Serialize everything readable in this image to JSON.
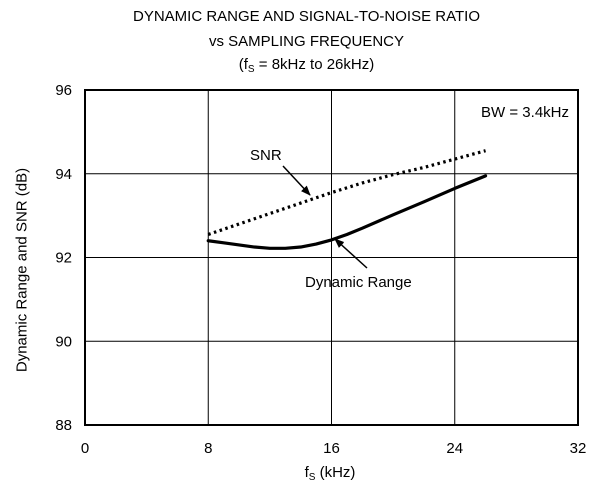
{
  "chart_data": {
    "type": "line",
    "title": "DYNAMIC RANGE AND SIGNAL-TO-NOISE RATIO",
    "subtitle": "vs SAMPLING FREQUENCY",
    "subtitle2": {
      "pre": "(f",
      "sub": "S",
      "post": " = 8kHz to 26kHz)"
    },
    "xlabel": {
      "pre": "f",
      "sub": "S",
      "post": " (kHz)"
    },
    "ylabel": "Dynamic Range and SNR (dB)",
    "xlim": [
      0,
      32
    ],
    "ylim": [
      88,
      96
    ],
    "xticks": [
      0,
      8,
      16,
      24,
      32
    ],
    "yticks": [
      88,
      90,
      92,
      94,
      96
    ],
    "grid": true,
    "series": [
      {
        "name": "SNR",
        "style": "dotted",
        "x": [
          8,
          10,
          12,
          14,
          16,
          18,
          20,
          22,
          24,
          26
        ],
        "y": [
          92.55,
          92.8,
          93.05,
          93.3,
          93.55,
          93.78,
          93.98,
          94.15,
          94.35,
          94.55
        ]
      },
      {
        "name": "Dynamic Range",
        "style": "solid",
        "x": [
          8,
          9,
          10,
          11,
          12,
          13,
          14,
          15,
          16,
          17,
          18,
          20,
          22,
          24,
          26
        ],
        "y": [
          92.4,
          92.35,
          92.3,
          92.25,
          92.22,
          92.22,
          92.25,
          92.32,
          92.42,
          92.55,
          92.7,
          93.02,
          93.33,
          93.65,
          93.95
        ]
      }
    ],
    "annotations": [
      {
        "text": "BW = 3.4kHz"
      },
      {
        "text": "SNR"
      },
      {
        "text": "Dynamic Range"
      }
    ]
  }
}
